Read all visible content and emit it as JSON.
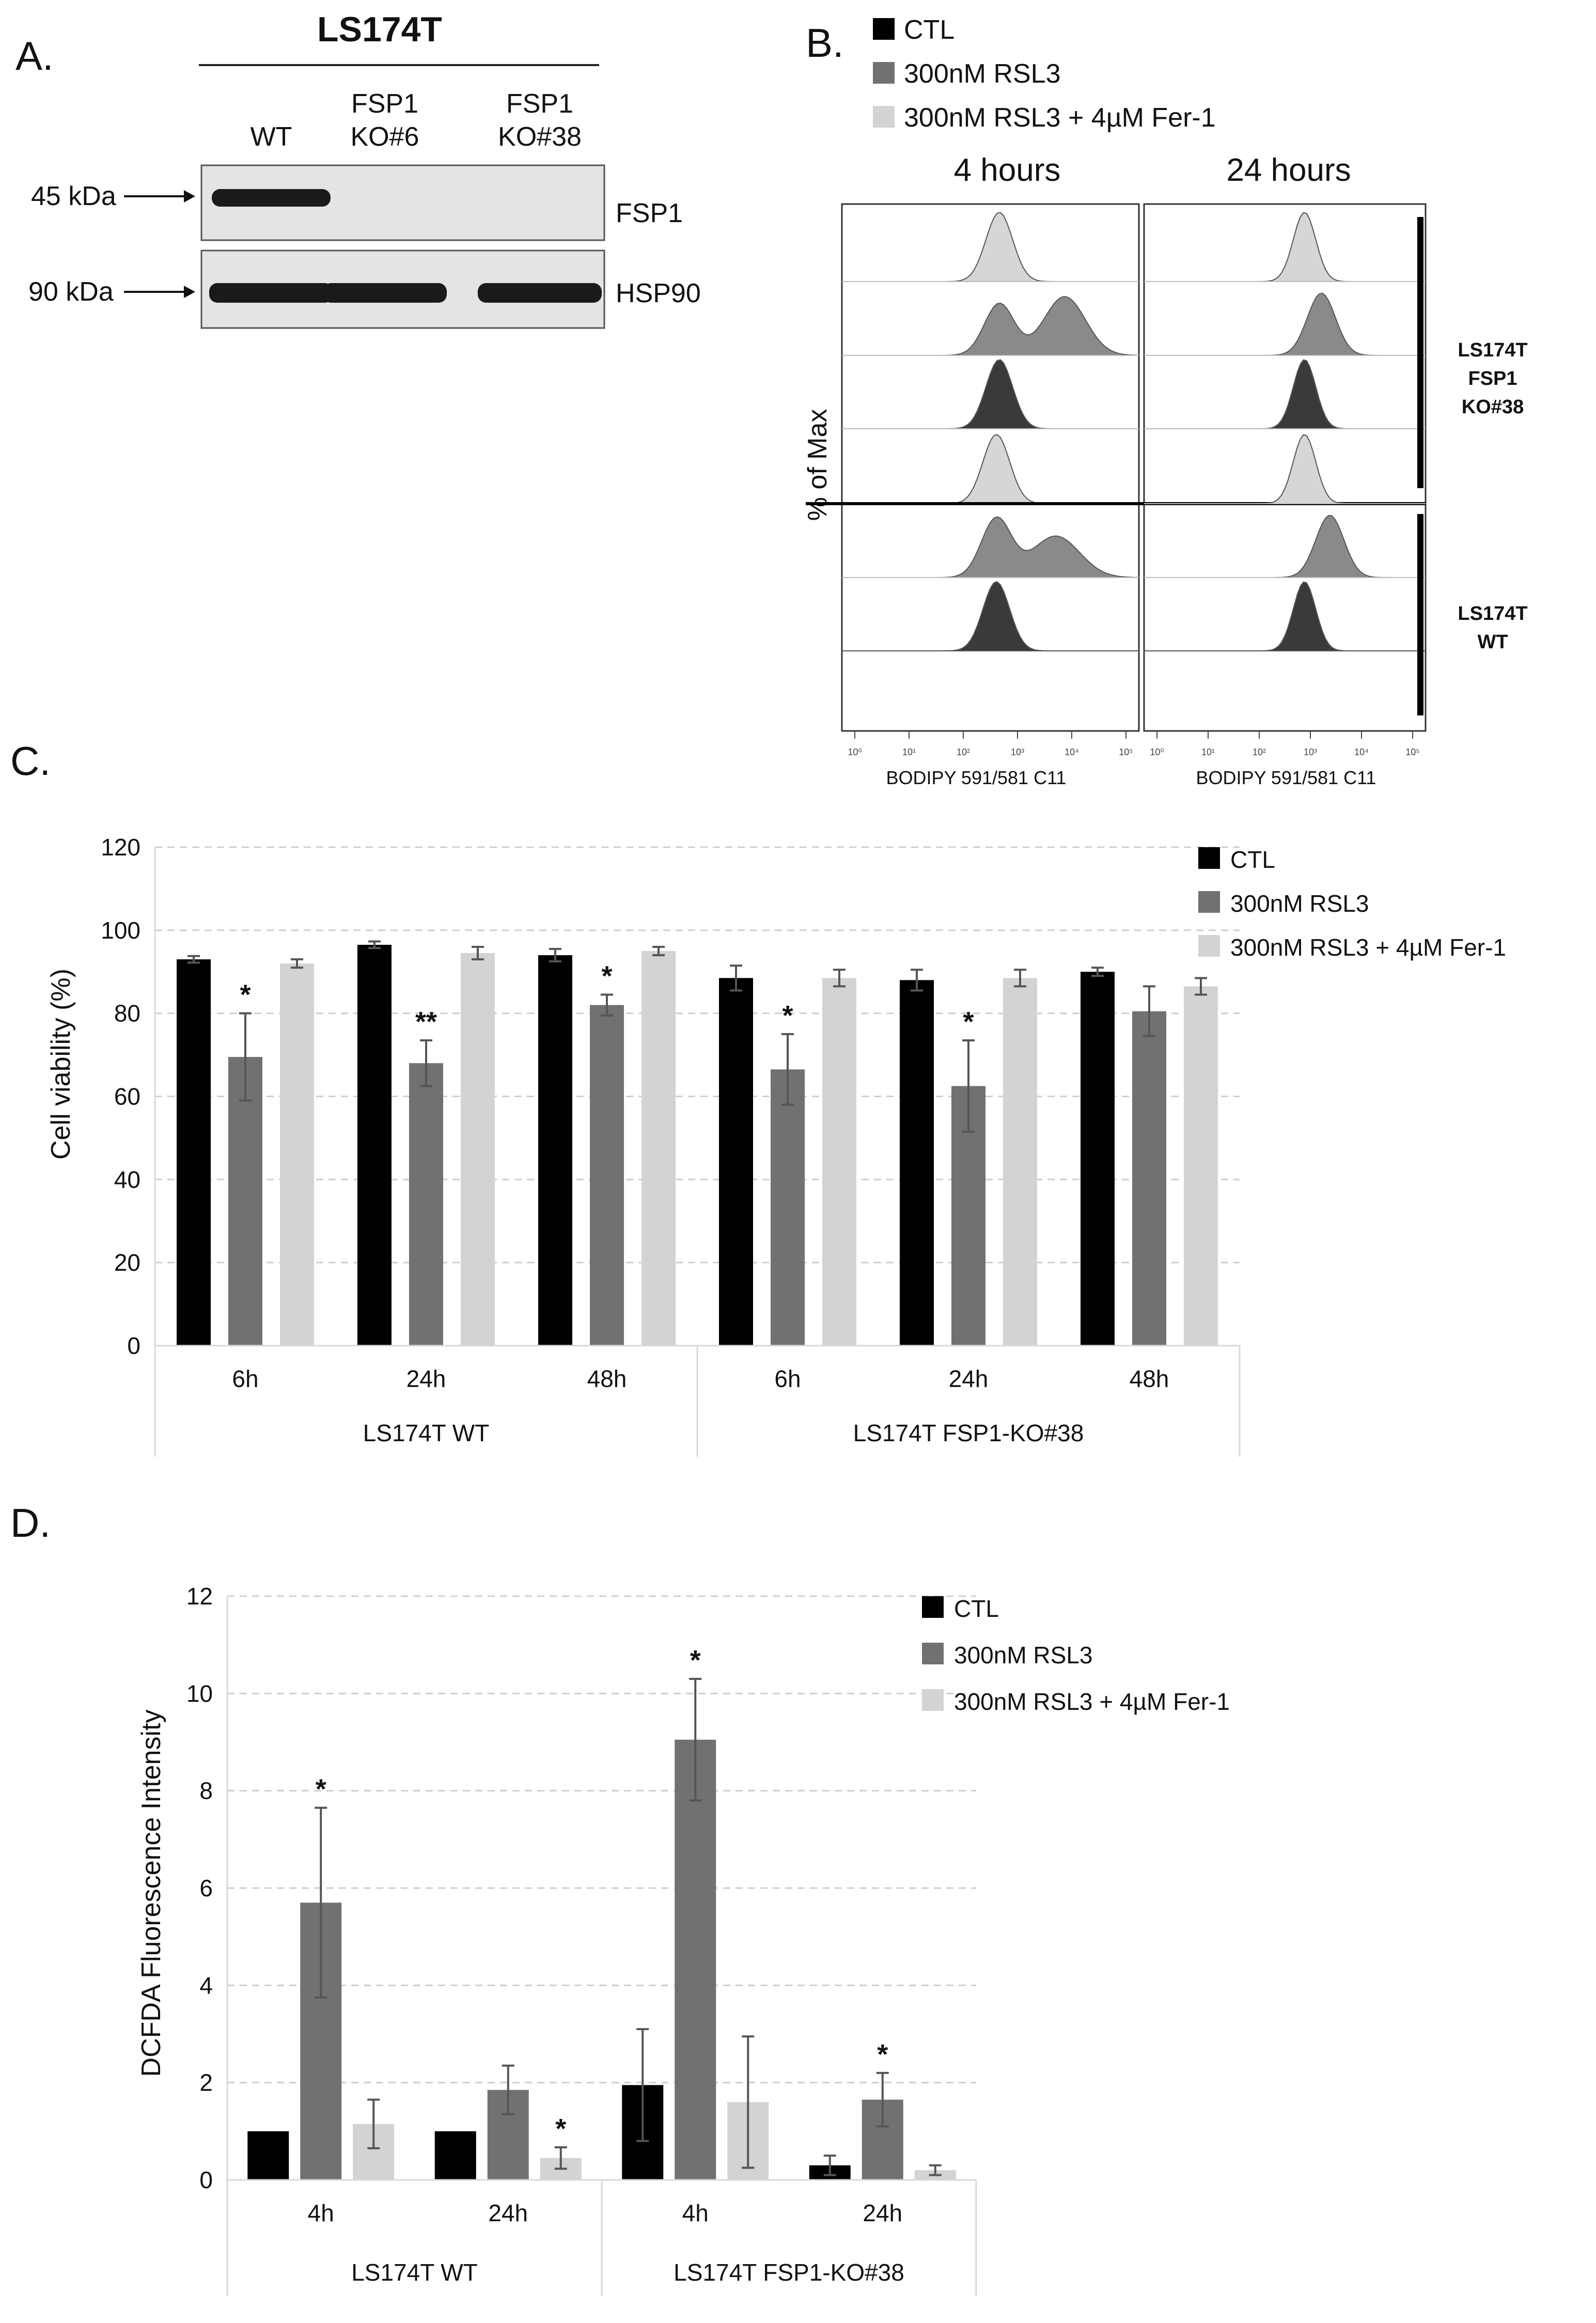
{
  "panels": {
    "a": "A.",
    "b": "B.",
    "c": "C.",
    "d": "D."
  },
  "panel_a": {
    "title": "LS174T",
    "lanes": [
      {
        "line1": "WT",
        "line2": ""
      },
      {
        "line1": "FSP1",
        "line2": "KO#6"
      },
      {
        "line1": "FSP1",
        "line2": "KO#38"
      }
    ],
    "markers": [
      "45 kDa",
      "90 kDa"
    ],
    "proteins": [
      "FSP1",
      "HSP90"
    ],
    "band_intensity": {
      "FSP1": [
        1,
        0,
        0
      ],
      "HSP90": [
        1,
        1,
        1
      ]
    }
  },
  "panel_b": {
    "legend": [
      "CTL",
      "300nM RSL3",
      "300nM RSL3 + 4µM Fer-1"
    ],
    "timepoints": [
      "4 hours",
      "24 hours"
    ],
    "ylabel": "% of Max",
    "xlabel": "BODIPY 591/581 C11",
    "ticks": [
      "10⁰",
      "10¹",
      "10²",
      "10³",
      "10⁴",
      "10⁵"
    ],
    "groups": [
      {
        "line1": "LS174T",
        "line2": "FSP1",
        "line3": "KO#38"
      },
      {
        "line1": "LS174T",
        "line2": "WT",
        "line3": ""
      }
    ]
  },
  "chart_data": [
    {
      "type": "bar",
      "title": "",
      "ylabel": "Cell viability (%)",
      "xlabel": "",
      "ylim": [
        0,
        120
      ],
      "yticks": [
        "0",
        "20",
        "40",
        "60",
        "80",
        "100",
        "120"
      ],
      "categories": [
        "6h",
        "24h",
        "48h",
        "6h",
        "24h",
        "48h"
      ],
      "groups": [
        {
          "label": "LS174T WT",
          "span": [
            0,
            2
          ]
        },
        {
          "label": "LS174T FSP1-KO#38",
          "span": [
            3,
            5
          ]
        }
      ],
      "series": [
        {
          "name": "CTL",
          "color": "#000000",
          "values": [
            93,
            96.5,
            94,
            88.5,
            88,
            90
          ],
          "errors": [
            0.8,
            0.8,
            1.5,
            3,
            2.5,
            1
          ]
        },
        {
          "name": "300nM RSL3",
          "color": "#717171",
          "values": [
            69.5,
            68,
            82,
            66.5,
            62.5,
            80.5
          ],
          "errors": [
            10.5,
            5.5,
            2.5,
            8.5,
            11,
            6
          ]
        },
        {
          "name": "300nM RSL3 + 4µM Fer-1",
          "color": "#d3d3d3",
          "values": [
            92,
            94.5,
            95,
            88.5,
            88.5,
            86.5
          ],
          "errors": [
            1,
            1.5,
            1,
            2,
            2,
            2
          ]
        }
      ],
      "significance": [
        {
          "series": 1,
          "index": 0,
          "text": "*"
        },
        {
          "series": 1,
          "index": 1,
          "text": "**"
        },
        {
          "series": 1,
          "index": 2,
          "text": "*"
        },
        {
          "series": 1,
          "index": 3,
          "text": "*"
        },
        {
          "series": 1,
          "index": 4,
          "text": "*"
        }
      ]
    },
    {
      "type": "bar",
      "title": "",
      "ylabel": "DCFDA Fluorescence Intensity",
      "xlabel": "",
      "ylim": [
        0,
        12
      ],
      "yticks": [
        "0",
        "2",
        "4",
        "6",
        "8",
        "10",
        "12"
      ],
      "categories": [
        "4h",
        "24h",
        "4h",
        "24h"
      ],
      "groups": [
        {
          "label": "LS174T WT",
          "span": [
            0,
            1
          ]
        },
        {
          "label": "LS174T FSP1-KO#38",
          "span": [
            2,
            3
          ]
        }
      ],
      "series": [
        {
          "name": "CTL",
          "color": "#000000",
          "values": [
            1,
            1,
            1.95,
            0.3
          ],
          "errors": [
            0,
            0,
            1.15,
            0.2
          ]
        },
        {
          "name": "300nM RSL3",
          "color": "#717171",
          "values": [
            5.7,
            1.85,
            9.05,
            1.65
          ],
          "errors": [
            1.95,
            0.5,
            1.25,
            0.55
          ]
        },
        {
          "name": "300nM RSL3 + 4µM Fer-1",
          "color": "#d3d3d3",
          "values": [
            1.15,
            0.45,
            1.6,
            0.2
          ],
          "errors": [
            0.5,
            0.22,
            1.35,
            0.1
          ]
        }
      ],
      "significance": [
        {
          "series": 1,
          "index": 0,
          "text": "*"
        },
        {
          "series": 2,
          "index": 1,
          "text": "*"
        },
        {
          "series": 1,
          "index": 2,
          "text": "*"
        },
        {
          "series": 1,
          "index": 3,
          "text": "*"
        }
      ]
    }
  ]
}
